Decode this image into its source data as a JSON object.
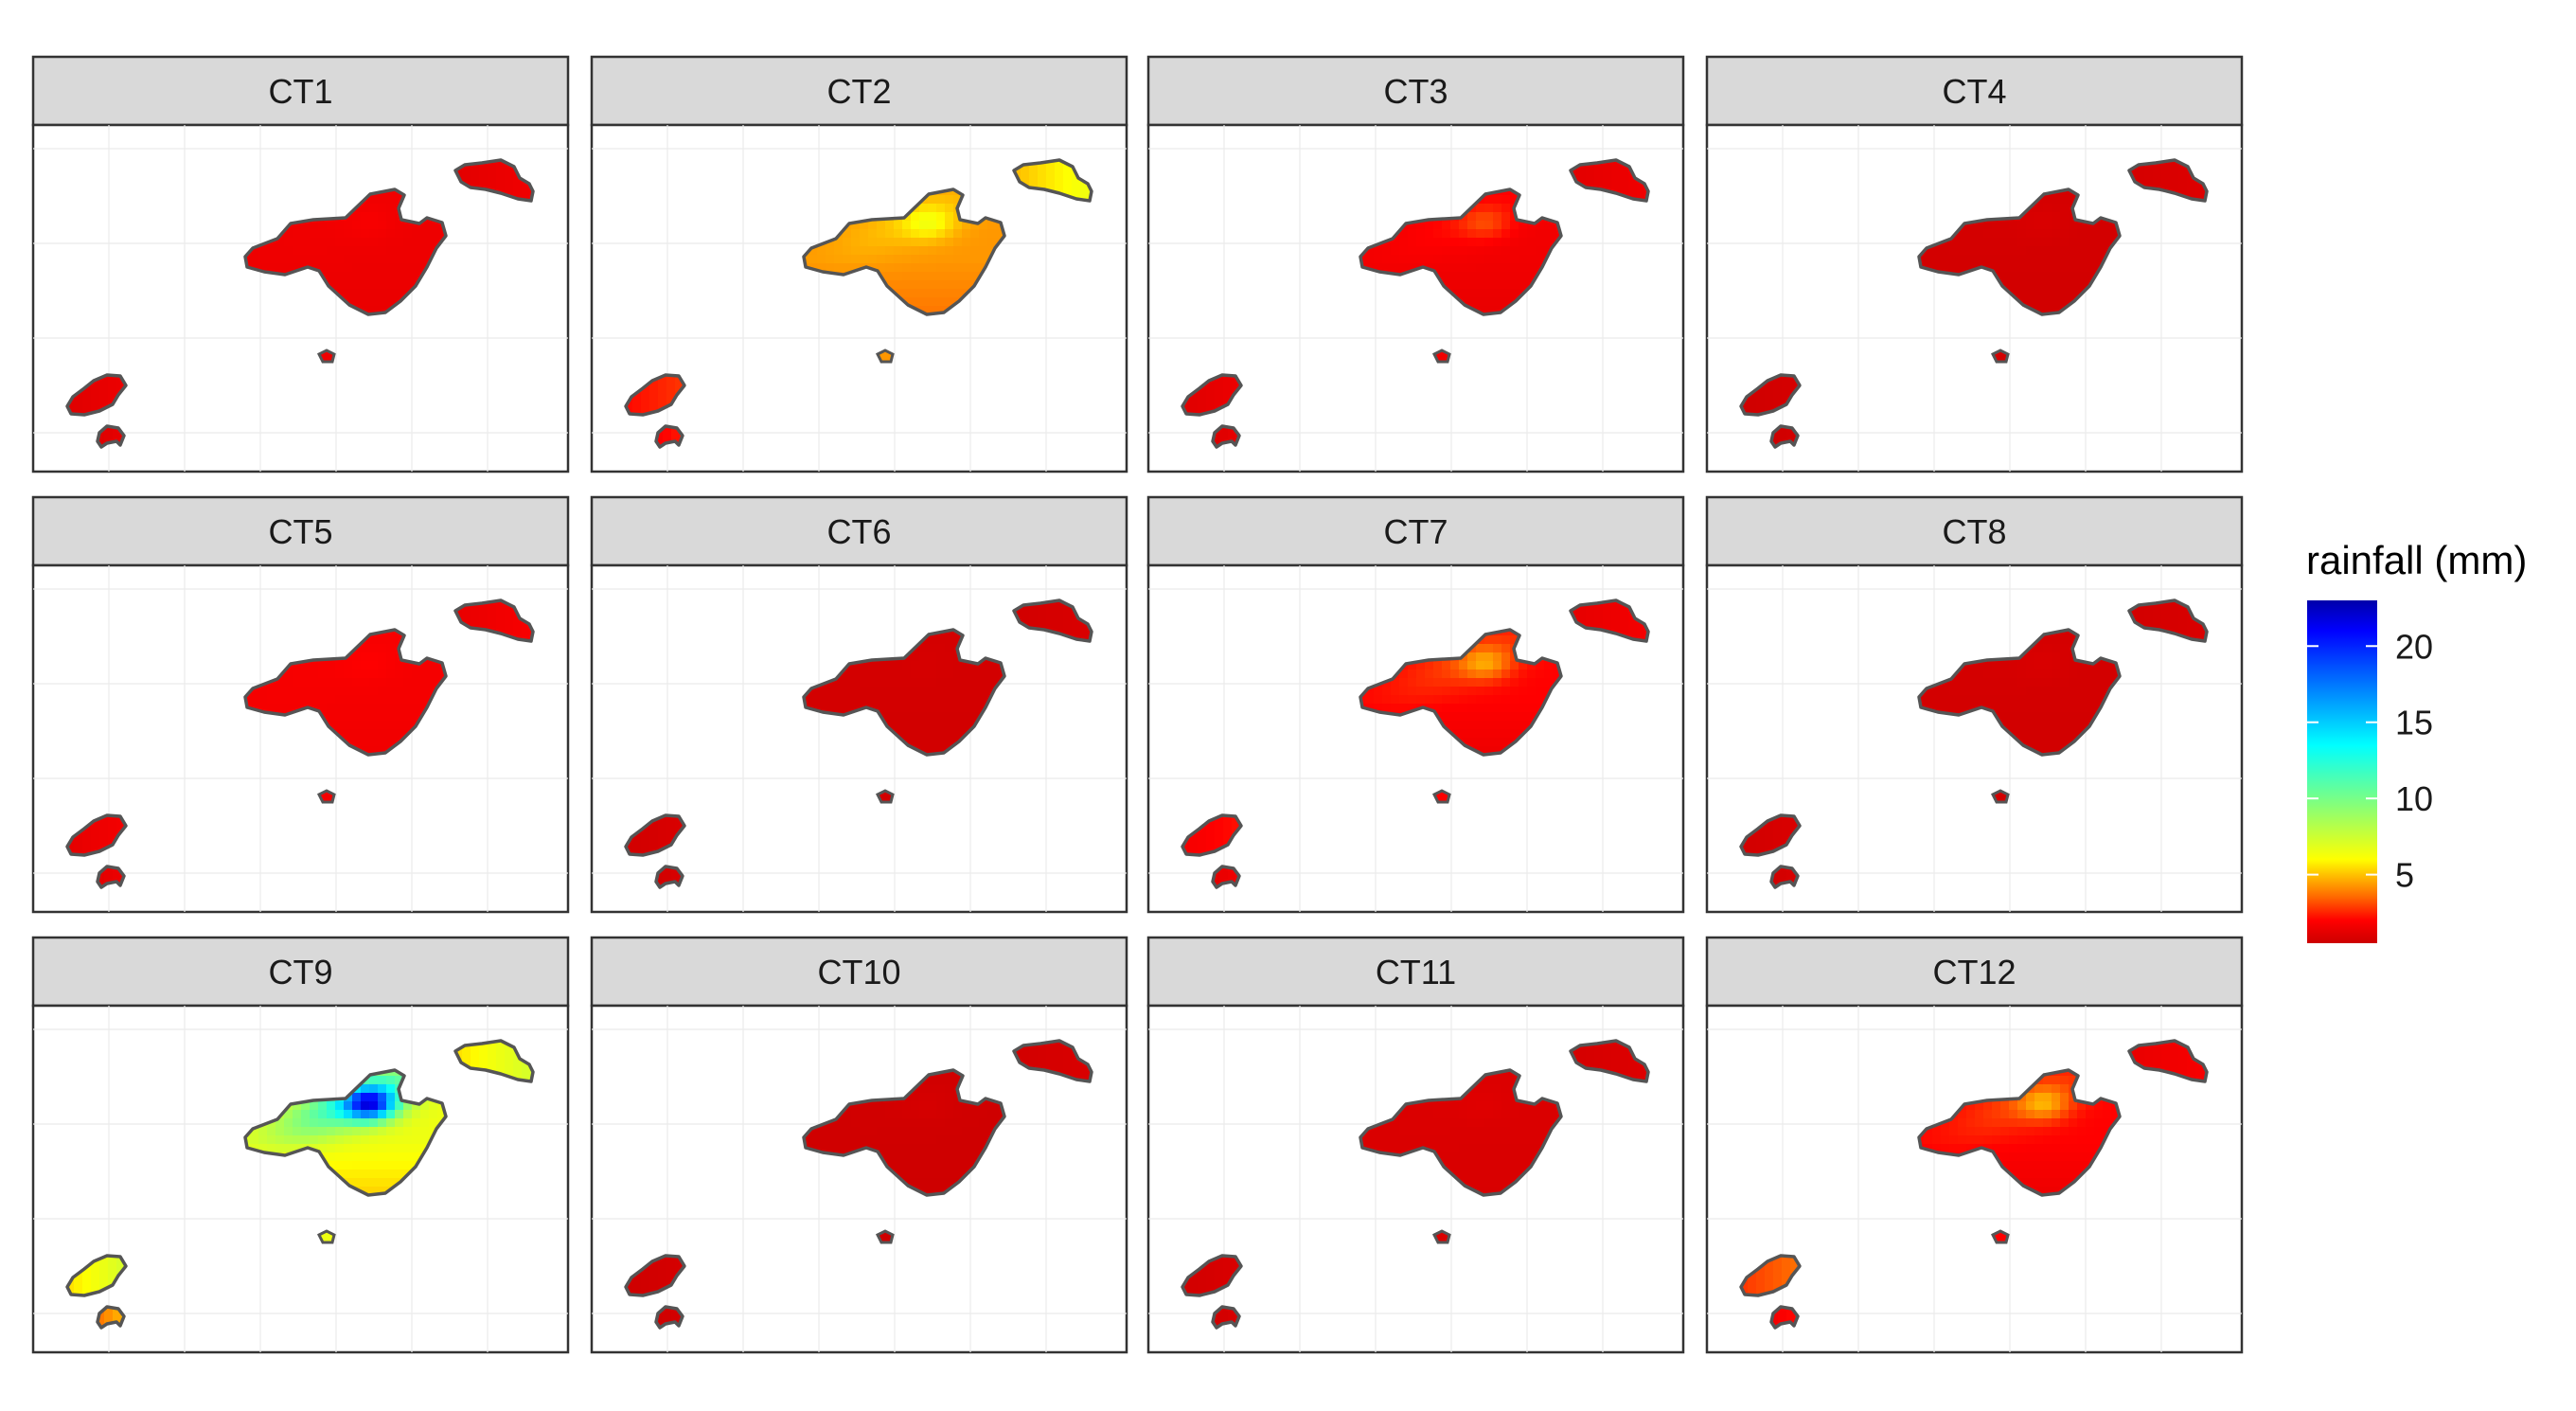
{
  "chart_data": {
    "type": "heatmap",
    "title": "",
    "xlabel": "",
    "ylabel": "",
    "grid": true,
    "legend_position": "right",
    "legend": {
      "title": "rainfall (mm)",
      "ticks": [
        20,
        15,
        10,
        5
      ],
      "range": [
        0.5,
        23
      ],
      "colors": [
        "#cc0000",
        "#ff0000",
        "#ff6600",
        "#ffff00",
        "#00ffff",
        "#0000ff",
        "#0000aa"
      ]
    },
    "panels": [
      {
        "label": "CT1",
        "mallorca": [
          1.5,
          1.8,
          0.3
        ],
        "menorca": 1.4,
        "ibiza": 1.3,
        "formentera": 1.2
      },
      {
        "label": "CT2",
        "mallorca": [
          4.3,
          6.5,
          1.3
        ],
        "menorca": 5.8,
        "ibiza": 2.5,
        "formentera": 2.2
      },
      {
        "label": "CT3",
        "mallorca": [
          1.6,
          3.2,
          0.6
        ],
        "menorca": 1.4,
        "ibiza": 1.3,
        "formentera": 1.2
      },
      {
        "label": "CT4",
        "mallorca": [
          0.7,
          0.9,
          0.1
        ],
        "menorca": 0.9,
        "ibiza": 0.7,
        "formentera": 0.7
      },
      {
        "label": "CT5",
        "mallorca": [
          1.7,
          2.0,
          0.3
        ],
        "menorca": 1.6,
        "ibiza": 1.5,
        "formentera": 1.4
      },
      {
        "label": "CT6",
        "mallorca": [
          0.7,
          0.8,
          0.1
        ],
        "menorca": 0.8,
        "ibiza": 0.8,
        "formentera": 0.8
      },
      {
        "label": "CT7",
        "mallorca": [
          2.0,
          4.8,
          1.2
        ],
        "menorca": 1.5,
        "ibiza": 2.0,
        "formentera": 1.5
      },
      {
        "label": "CT8",
        "mallorca": [
          0.7,
          0.9,
          0.1
        ],
        "menorca": 0.8,
        "ibiza": 0.8,
        "formentera": 0.8
      },
      {
        "label": "CT9",
        "mallorca": [
          6.5,
          23.0,
          3.0
        ],
        "menorca": 6.5,
        "ibiza": 6.5,
        "formentera": 4.5
      },
      {
        "label": "CT10",
        "mallorca": [
          0.6,
          0.8,
          0.1
        ],
        "menorca": 0.8,
        "ibiza": 0.7,
        "formentera": 0.7
      },
      {
        "label": "CT11",
        "mallorca": [
          0.9,
          1.1,
          0.1
        ],
        "menorca": 0.9,
        "ibiza": 0.8,
        "formentera": 0.8
      },
      {
        "label": "CT12",
        "mallorca": [
          2.0,
          5.0,
          1.2
        ],
        "menorca": 1.6,
        "ibiza": 3.3,
        "formentera": 2.0
      }
    ]
  }
}
